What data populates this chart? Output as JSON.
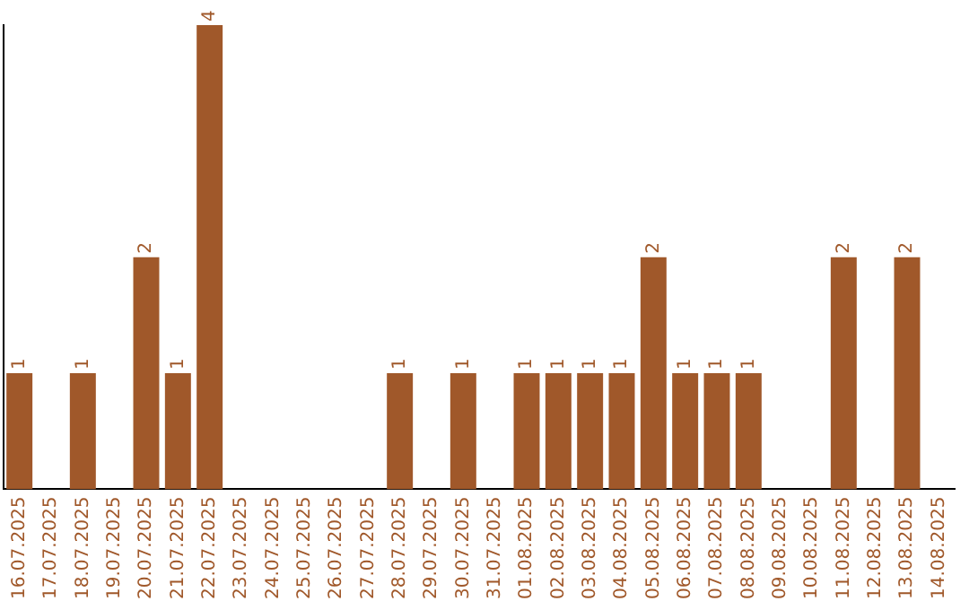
{
  "chart_data": {
    "type": "bar",
    "categories": [
      "16.07.2025",
      "17.07.2025",
      "18.07.2025",
      "19.07.2025",
      "20.07.2025",
      "21.07.2025",
      "22.07.2025",
      "23.07.2025",
      "24.07.2025",
      "25.07.2025",
      "26.07.2025",
      "27.07.2025",
      "28.07.2025",
      "29.07.2025",
      "30.07.2025",
      "31.07.2025",
      "01.08.2025",
      "02.08.2025",
      "03.08.2025",
      "04.08.2025",
      "05.08.2025",
      "06.08.2025",
      "07.08.2025",
      "08.08.2025",
      "09.08.2025",
      "10.08.2025",
      "11.08.2025",
      "12.08.2025",
      "13.08.2025",
      "14.08.2025"
    ],
    "values": [
      1,
      0,
      1,
      0,
      2,
      1,
      4,
      0,
      0,
      0,
      0,
      0,
      1,
      0,
      1,
      0,
      1,
      1,
      1,
      1,
      2,
      1,
      1,
      1,
      0,
      0,
      2,
      0,
      2,
      0
    ],
    "value_labels": [
      "1",
      null,
      "1",
      null,
      "2",
      "1",
      "4",
      null,
      null,
      null,
      null,
      null,
      "1",
      null,
      "1",
      null,
      "1",
      "1",
      "1",
      "1",
      "2",
      "1",
      "1",
      "1",
      null,
      null,
      "2",
      null,
      "2",
      null
    ],
    "color": "#a0582a",
    "tick_labels": "x",
    "grid": false,
    "legend": false
  }
}
